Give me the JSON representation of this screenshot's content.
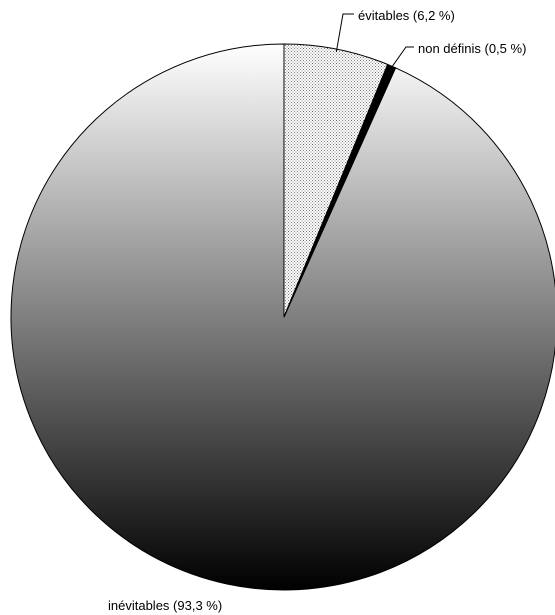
{
  "chart_data": {
    "type": "pie",
    "slices": [
      {
        "label": "évitables (6,2 %)",
        "value": 6.2,
        "fill": "dotted"
      },
      {
        "label": "non définis (0,5 %)",
        "value": 0.5,
        "fill": "#000000"
      },
      {
        "label": "inévitables (93,3 %)",
        "value": 93.3,
        "fill": "gradient"
      }
    ],
    "start_angle": "12 o'clock",
    "direction": "clockwise",
    "legend": "none"
  },
  "colors": {
    "gradient_top": "#ffffff",
    "gradient_bottom": "#000000",
    "dots": "#7a7a7a",
    "outline": "#000000"
  }
}
